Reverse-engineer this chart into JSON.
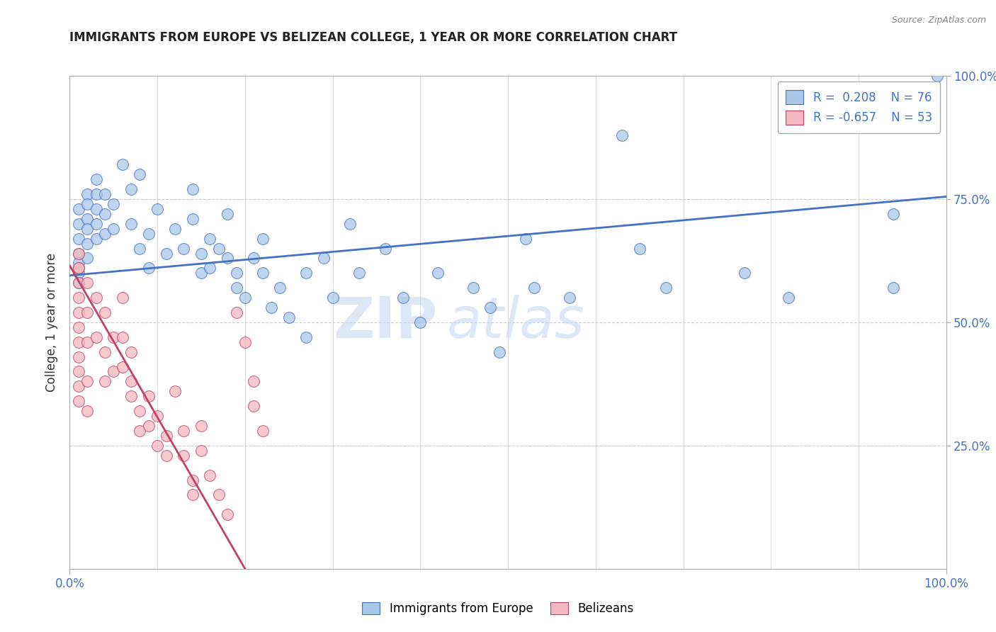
{
  "title": "IMMIGRANTS FROM EUROPE VS BELIZEAN COLLEGE, 1 YEAR OR MORE CORRELATION CHART",
  "source_text": "Source: ZipAtlas.com",
  "ylabel": "College, 1 year or more",
  "xlim": [
    0,
    1.0
  ],
  "ylim": [
    0,
    1.0
  ],
  "right_ytick_labels": [
    "100.0%",
    "75.0%",
    "50.0%",
    "25.0%"
  ],
  "right_ytick_positions": [
    1.0,
    0.75,
    0.5,
    0.25
  ],
  "watermark_line1": "ZIP",
  "watermark_line2": "atlas",
  "legend_r1": "R =  0.208",
  "legend_n1": "N = 76",
  "legend_r2": "R = -0.657",
  "legend_n2": "N = 53",
  "blue_color": "#a8c8e8",
  "pink_color": "#f4b8c0",
  "blue_line_color": "#4472c4",
  "pink_line_color": "#c0426a",
  "title_color": "#222222",
  "tick_color": "#4472c4",
  "grid_color": "#cccccc",
  "blue_scatter": [
    [
      0.01,
      0.73
    ],
    [
      0.01,
      0.7
    ],
    [
      0.01,
      0.67
    ],
    [
      0.01,
      0.64
    ],
    [
      0.01,
      0.62
    ],
    [
      0.01,
      0.6
    ],
    [
      0.01,
      0.58
    ],
    [
      0.02,
      0.76
    ],
    [
      0.02,
      0.74
    ],
    [
      0.02,
      0.71
    ],
    [
      0.02,
      0.69
    ],
    [
      0.02,
      0.66
    ],
    [
      0.02,
      0.63
    ],
    [
      0.03,
      0.79
    ],
    [
      0.03,
      0.76
    ],
    [
      0.03,
      0.73
    ],
    [
      0.03,
      0.7
    ],
    [
      0.03,
      0.67
    ],
    [
      0.04,
      0.76
    ],
    [
      0.04,
      0.72
    ],
    [
      0.04,
      0.68
    ],
    [
      0.05,
      0.74
    ],
    [
      0.05,
      0.69
    ],
    [
      0.06,
      0.82
    ],
    [
      0.07,
      0.77
    ],
    [
      0.07,
      0.7
    ],
    [
      0.08,
      0.65
    ],
    [
      0.08,
      0.8
    ],
    [
      0.09,
      0.68
    ],
    [
      0.09,
      0.61
    ],
    [
      0.1,
      0.73
    ],
    [
      0.11,
      0.64
    ],
    [
      0.12,
      0.69
    ],
    [
      0.13,
      0.65
    ],
    [
      0.14,
      0.77
    ],
    [
      0.14,
      0.71
    ],
    [
      0.15,
      0.64
    ],
    [
      0.15,
      0.6
    ],
    [
      0.16,
      0.67
    ],
    [
      0.16,
      0.61
    ],
    [
      0.17,
      0.65
    ],
    [
      0.18,
      0.72
    ],
    [
      0.18,
      0.63
    ],
    [
      0.19,
      0.6
    ],
    [
      0.19,
      0.57
    ],
    [
      0.2,
      0.55
    ],
    [
      0.21,
      0.63
    ],
    [
      0.22,
      0.67
    ],
    [
      0.22,
      0.6
    ],
    [
      0.23,
      0.53
    ],
    [
      0.24,
      0.57
    ],
    [
      0.25,
      0.51
    ],
    [
      0.27,
      0.6
    ],
    [
      0.27,
      0.47
    ],
    [
      0.29,
      0.63
    ],
    [
      0.3,
      0.55
    ],
    [
      0.32,
      0.7
    ],
    [
      0.33,
      0.6
    ],
    [
      0.36,
      0.65
    ],
    [
      0.38,
      0.55
    ],
    [
      0.4,
      0.5
    ],
    [
      0.42,
      0.6
    ],
    [
      0.46,
      0.57
    ],
    [
      0.48,
      0.53
    ],
    [
      0.49,
      0.44
    ],
    [
      0.52,
      0.67
    ],
    [
      0.53,
      0.57
    ],
    [
      0.57,
      0.55
    ],
    [
      0.63,
      0.88
    ],
    [
      0.65,
      0.65
    ],
    [
      0.68,
      0.57
    ],
    [
      0.77,
      0.6
    ],
    [
      0.82,
      0.55
    ],
    [
      0.94,
      0.72
    ],
    [
      0.94,
      0.57
    ],
    [
      0.99,
      1.0
    ]
  ],
  "pink_scatter": [
    [
      0.01,
      0.64
    ],
    [
      0.01,
      0.61
    ],
    [
      0.01,
      0.58
    ],
    [
      0.01,
      0.55
    ],
    [
      0.01,
      0.52
    ],
    [
      0.01,
      0.49
    ],
    [
      0.01,
      0.46
    ],
    [
      0.01,
      0.43
    ],
    [
      0.01,
      0.4
    ],
    [
      0.01,
      0.37
    ],
    [
      0.01,
      0.34
    ],
    [
      0.01,
      0.61
    ],
    [
      0.02,
      0.58
    ],
    [
      0.02,
      0.52
    ],
    [
      0.02,
      0.46
    ],
    [
      0.02,
      0.38
    ],
    [
      0.02,
      0.32
    ],
    [
      0.03,
      0.55
    ],
    [
      0.03,
      0.47
    ],
    [
      0.04,
      0.52
    ],
    [
      0.04,
      0.44
    ],
    [
      0.04,
      0.38
    ],
    [
      0.05,
      0.47
    ],
    [
      0.05,
      0.4
    ],
    [
      0.06,
      0.55
    ],
    [
      0.06,
      0.47
    ],
    [
      0.06,
      0.41
    ],
    [
      0.07,
      0.35
    ],
    [
      0.07,
      0.44
    ],
    [
      0.07,
      0.38
    ],
    [
      0.08,
      0.32
    ],
    [
      0.08,
      0.28
    ],
    [
      0.09,
      0.35
    ],
    [
      0.09,
      0.29
    ],
    [
      0.1,
      0.31
    ],
    [
      0.1,
      0.25
    ],
    [
      0.11,
      0.27
    ],
    [
      0.11,
      0.23
    ],
    [
      0.12,
      0.36
    ],
    [
      0.13,
      0.28
    ],
    [
      0.13,
      0.23
    ],
    [
      0.14,
      0.18
    ],
    [
      0.14,
      0.15
    ],
    [
      0.15,
      0.29
    ],
    [
      0.15,
      0.24
    ],
    [
      0.16,
      0.19
    ],
    [
      0.17,
      0.15
    ],
    [
      0.18,
      0.11
    ],
    [
      0.19,
      0.52
    ],
    [
      0.2,
      0.46
    ],
    [
      0.21,
      0.38
    ],
    [
      0.21,
      0.33
    ],
    [
      0.22,
      0.28
    ]
  ],
  "blue_trendline": [
    [
      0.0,
      0.595
    ],
    [
      1.0,
      0.755
    ]
  ],
  "pink_trendline": [
    [
      0.0,
      0.615
    ],
    [
      0.2,
      0.0
    ]
  ]
}
